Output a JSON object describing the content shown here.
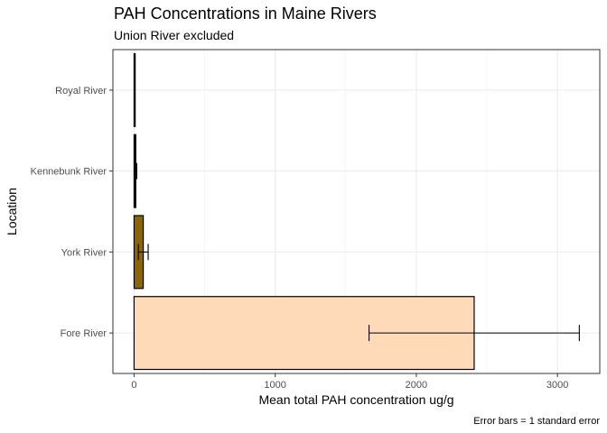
{
  "chart_data": {
    "type": "bar",
    "orientation": "horizontal",
    "title": "PAH Concentrations in Maine Rivers",
    "subtitle": "Union River excluded",
    "xlabel": "Mean total PAH concentration ug/g",
    "ylabel": "Location",
    "caption": "Error bars = 1 standard error",
    "xlim": [
      -150,
      3300
    ],
    "x_ticks": [
      0,
      1000,
      2000,
      3000
    ],
    "grid": true,
    "categories": [
      "Fore River",
      "York River",
      "Kennebunk River",
      "Royal River"
    ],
    "values": [
      2410,
      65,
      12,
      3
    ],
    "errors": [
      745,
      35,
      7,
      1
    ],
    "colors": [
      "#FFDAB9",
      "#8B6508",
      "#000000",
      "#000000"
    ]
  }
}
